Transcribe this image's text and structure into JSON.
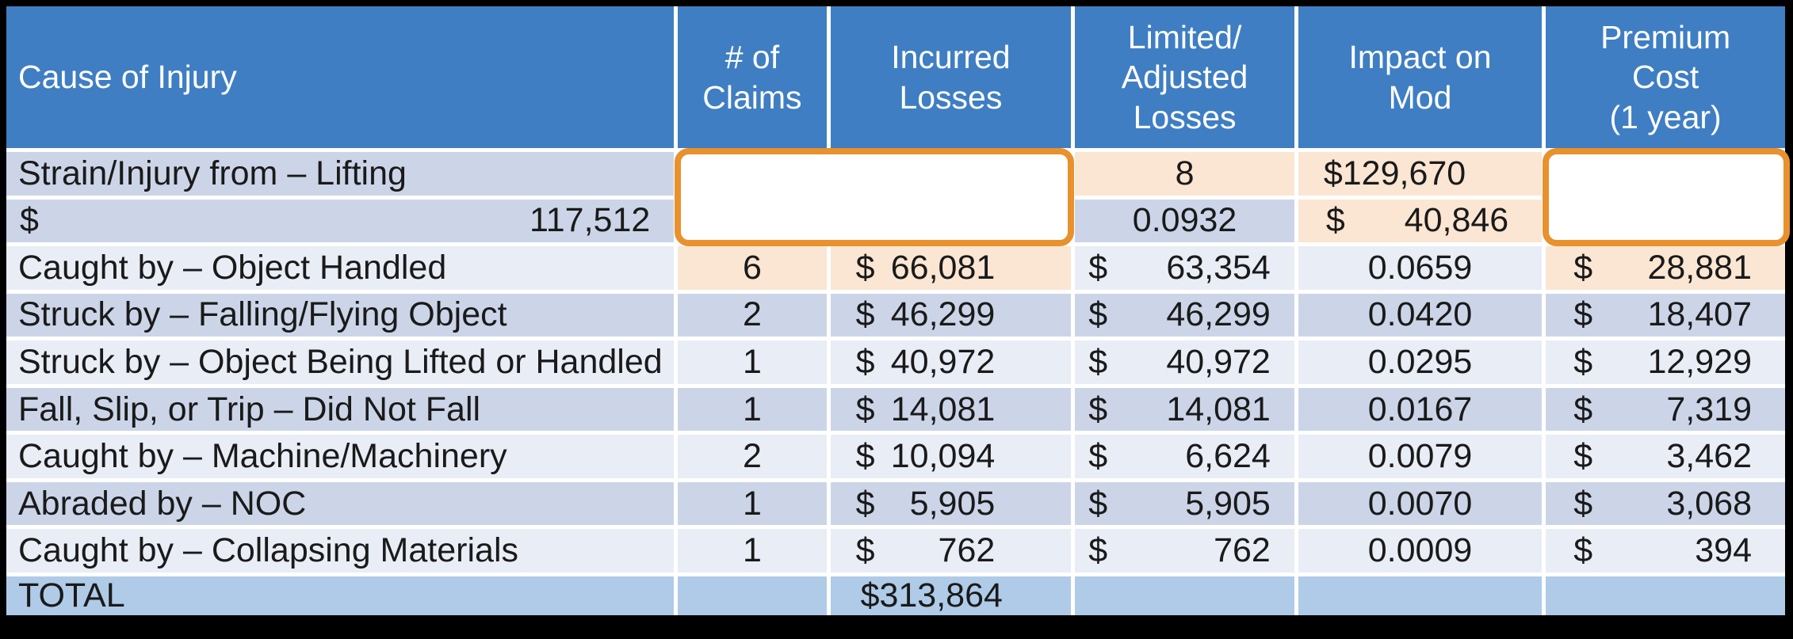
{
  "colors": {
    "frame_border": "#000000",
    "header_bg": "#3F7EC3",
    "header_text": "#FFFFFF",
    "row_odd_bg": "#CCD5E8",
    "row_even_bg": "#E9EDF6",
    "total_row_bg": "#AFCBE8",
    "highlight_fill": "#FBE6D3",
    "highlight_border": "#E8912D",
    "body_text": "#1A1A1A"
  },
  "table": {
    "currency_symbol": "$",
    "columns": [
      {
        "id": "cause",
        "label": "Cause of Injury"
      },
      {
        "id": "claims",
        "label": "# of\nClaims"
      },
      {
        "id": "incurred",
        "label": "Incurred\nLosses"
      },
      {
        "id": "limited",
        "label": "Limited/\nAdjusted\nLosses"
      },
      {
        "id": "impact",
        "label": "Impact on\nMod"
      },
      {
        "id": "premium",
        "label": "Premium\nCost\n(1 year)"
      }
    ],
    "rows": [
      {
        "cause": "Strain/Injury from – Lifting",
        "claims": "8",
        "incurred": "129,670",
        "limited": "117,512",
        "impact": "0.0932",
        "premium": "40,846"
      },
      {
        "cause": "Caught by – Object Handled",
        "claims": "6",
        "incurred": "66,081",
        "limited": "63,354",
        "impact": "0.0659",
        "premium": "28,881"
      },
      {
        "cause": "Struck by – Falling/Flying Object",
        "claims": "2",
        "incurred": "46,299",
        "limited": "46,299",
        "impact": "0.0420",
        "premium": "18,407"
      },
      {
        "cause": "Struck by – Object Being Lifted or Handled",
        "claims": "1",
        "incurred": "40,972",
        "limited": "40,972",
        "impact": "0.0295",
        "premium": "12,929"
      },
      {
        "cause": "Fall, Slip, or Trip – Did Not Fall",
        "claims": "1",
        "incurred": "14,081",
        "limited": "14,081",
        "impact": "0.0167",
        "premium": "7,319"
      },
      {
        "cause": "Caught by – Machine/Machinery",
        "claims": "2",
        "incurred": "10,094",
        "limited": "6,624",
        "impact": "0.0079",
        "premium": "3,462"
      },
      {
        "cause": "Abraded by – NOC",
        "claims": "1",
        "incurred": "5,905",
        "limited": "5,905",
        "impact": "0.0070",
        "premium": "3,068"
      },
      {
        "cause": "Caught by – Collapsing Materials",
        "claims": "1",
        "incurred": "762",
        "limited": "762",
        "impact": "0.0009",
        "premium": "394"
      }
    ],
    "total_row": {
      "label": "TOTAL",
      "incurred_total": "$313,864"
    },
    "highlights": {
      "rows": [
        0,
        1
      ],
      "columns": [
        "claims",
        "incurred",
        "premium"
      ]
    }
  }
}
